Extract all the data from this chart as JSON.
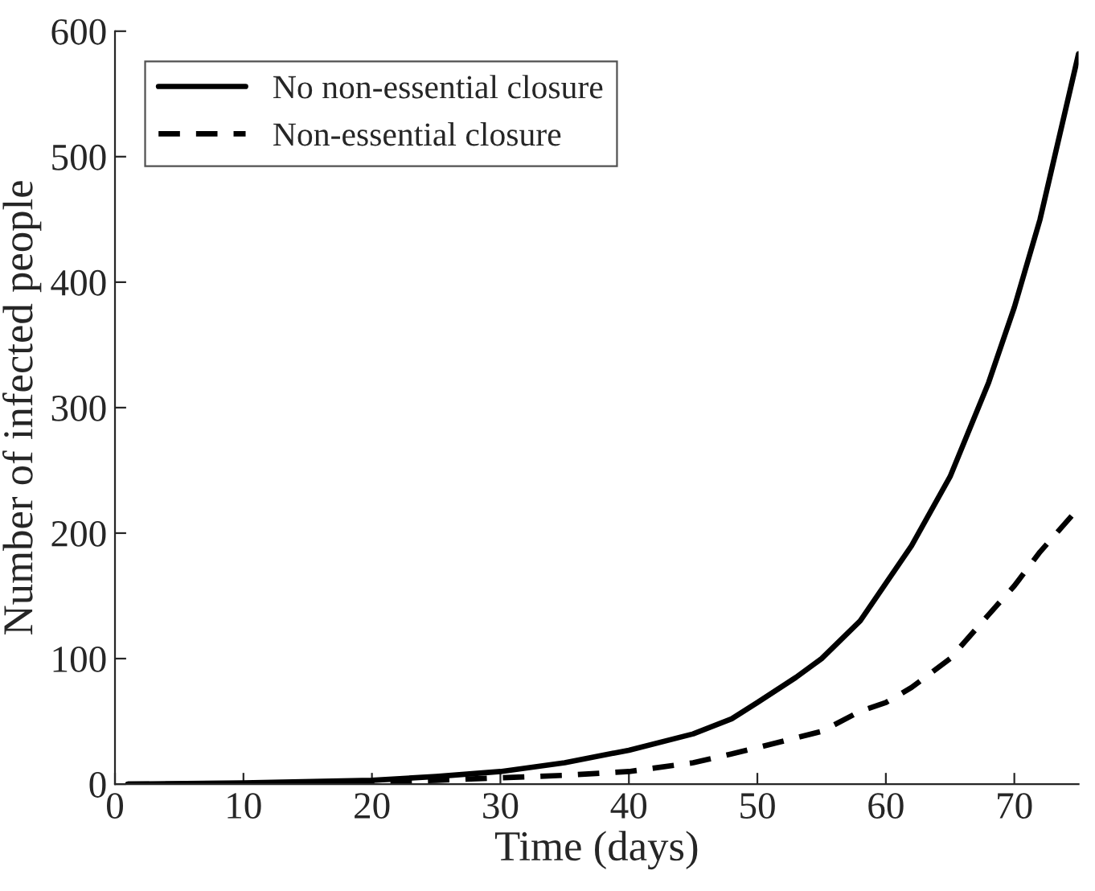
{
  "chart_data": {
    "type": "line",
    "xlabel": "Time (days)",
    "ylabel": "Number of infected people",
    "xlim": [
      0,
      75
    ],
    "ylim": [
      0,
      600
    ],
    "xticks": [
      0,
      10,
      20,
      30,
      40,
      50,
      60,
      70
    ],
    "yticks": [
      0,
      100,
      200,
      300,
      400,
      500,
      600
    ],
    "grid": false,
    "legend": "top left",
    "series": [
      {
        "name": "No non-essential closure",
        "color": "#000000",
        "line_style": "solid",
        "x": [
          1,
          10,
          20,
          25,
          30,
          35,
          40,
          45,
          48,
          50,
          53,
          55,
          58,
          60,
          62,
          65,
          68,
          70,
          72,
          75
        ],
        "values": [
          0,
          1,
          3,
          6,
          10,
          17,
          27,
          40,
          52,
          65,
          85,
          100,
          130,
          160,
          190,
          245,
          320,
          380,
          450,
          582
        ]
      },
      {
        "name": "Non-essential closure",
        "color": "#000000",
        "line_style": "dashed",
        "x": [
          1,
          10,
          20,
          25,
          30,
          35,
          40,
          45,
          48,
          50,
          55,
          58,
          60,
          62,
          65,
          68,
          70,
          72,
          75
        ],
        "values": [
          0,
          0,
          2,
          3,
          5,
          7,
          10,
          17,
          24,
          29,
          42,
          58,
          65,
          77,
          100,
          135,
          158,
          185,
          220
        ]
      }
    ]
  }
}
